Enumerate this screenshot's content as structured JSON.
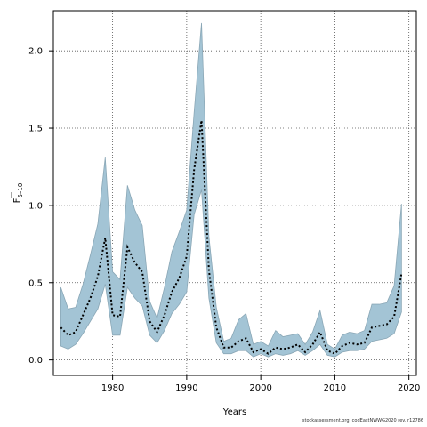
{
  "chart_data": {
    "type": "area",
    "xlabel": "Years",
    "ylabel": "F",
    "ylabel_subscript": "5–10",
    "xlim": [
      1972,
      2021
    ],
    "ylim": [
      -0.1,
      2.26
    ],
    "xticks": [
      1980,
      1990,
      2000,
      2010,
      2020
    ],
    "yticks": [
      0.0,
      0.5,
      1.0,
      1.5,
      2.0
    ],
    "ytick_labels": [
      "0.0",
      "0.5",
      "1.0",
      "1.5",
      "2.0"
    ],
    "grid": true,
    "band_color": "#a3c4d5",
    "band_edge_color": "#8aa7b6",
    "line_color": "#000000",
    "x": [
      1973,
      1974,
      1975,
      1976,
      1977,
      1978,
      1979,
      1980,
      1981,
      1982,
      1983,
      1984,
      1985,
      1986,
      1987,
      1988,
      1989,
      1990,
      1991,
      1992,
      1993,
      1994,
      1995,
      1996,
      1997,
      1998,
      1999,
      2000,
      2001,
      2002,
      2003,
      2004,
      2005,
      2006,
      2007,
      2008,
      2009,
      2010,
      2011,
      2012,
      2013,
      2014,
      2015,
      2016,
      2017,
      2018,
      2019
    ],
    "series": [
      {
        "role": "upper",
        "values": [
          0.47,
          0.33,
          0.34,
          0.49,
          0.68,
          0.88,
          1.31,
          0.57,
          0.52,
          1.13,
          0.97,
          0.87,
          0.38,
          0.27,
          0.47,
          0.7,
          0.83,
          0.97,
          1.6,
          2.18,
          0.8,
          0.34,
          0.12,
          0.14,
          0.26,
          0.3,
          0.1,
          0.12,
          0.09,
          0.19,
          0.15,
          0.16,
          0.17,
          0.1,
          0.18,
          0.32,
          0.1,
          0.07,
          0.16,
          0.18,
          0.17,
          0.19,
          0.36,
          0.36,
          0.37,
          0.48,
          1.01
        ]
      },
      {
        "role": "estimate",
        "values": [
          0.21,
          0.16,
          0.18,
          0.29,
          0.4,
          0.54,
          0.79,
          0.29,
          0.28,
          0.73,
          0.63,
          0.57,
          0.25,
          0.18,
          0.29,
          0.44,
          0.53,
          0.67,
          1.23,
          1.55,
          0.58,
          0.21,
          0.08,
          0.08,
          0.12,
          0.14,
          0.05,
          0.07,
          0.04,
          0.08,
          0.07,
          0.08,
          0.1,
          0.05,
          0.1,
          0.18,
          0.06,
          0.04,
          0.09,
          0.11,
          0.1,
          0.11,
          0.21,
          0.22,
          0.23,
          0.28,
          0.56
        ]
      },
      {
        "role": "lower",
        "values": [
          0.09,
          0.07,
          0.1,
          0.17,
          0.25,
          0.33,
          0.49,
          0.16,
          0.16,
          0.47,
          0.4,
          0.35,
          0.16,
          0.11,
          0.19,
          0.3,
          0.36,
          0.44,
          0.94,
          1.1,
          0.4,
          0.11,
          0.04,
          0.04,
          0.06,
          0.06,
          0.02,
          0.04,
          0.02,
          0.04,
          0.03,
          0.04,
          0.06,
          0.03,
          0.06,
          0.1,
          0.03,
          0.02,
          0.05,
          0.06,
          0.06,
          0.07,
          0.12,
          0.13,
          0.14,
          0.17,
          0.31
        ]
      }
    ]
  },
  "footer_text": "stockassessment.org, codEastNWWG2020 rev. r12786"
}
